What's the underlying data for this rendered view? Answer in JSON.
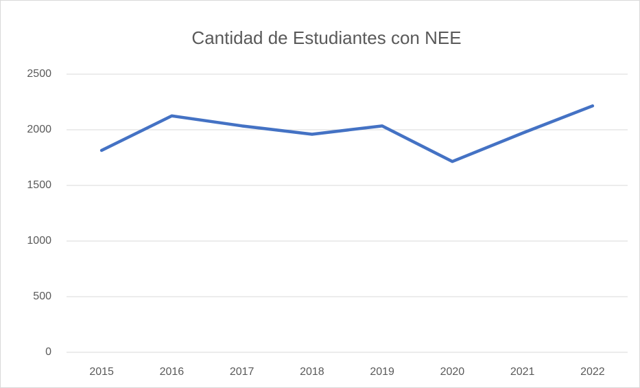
{
  "chart_data": {
    "type": "line",
    "title": "Cantidad de Estudiantes con NEE",
    "categories": [
      "2015",
      "2016",
      "2017",
      "2018",
      "2019",
      "2020",
      "2021",
      "2022"
    ],
    "series": [
      {
        "name": "Cantidad de Estudiantes con NEE",
        "color": "#4472c4",
        "values": [
          1815,
          2125,
          2035,
          1960,
          2035,
          1715,
          1970,
          2215
        ]
      }
    ],
    "ylim": [
      0,
      2500
    ],
    "yticks": [
      0,
      500,
      1000,
      1500,
      2000,
      2500
    ],
    "grid": true
  }
}
